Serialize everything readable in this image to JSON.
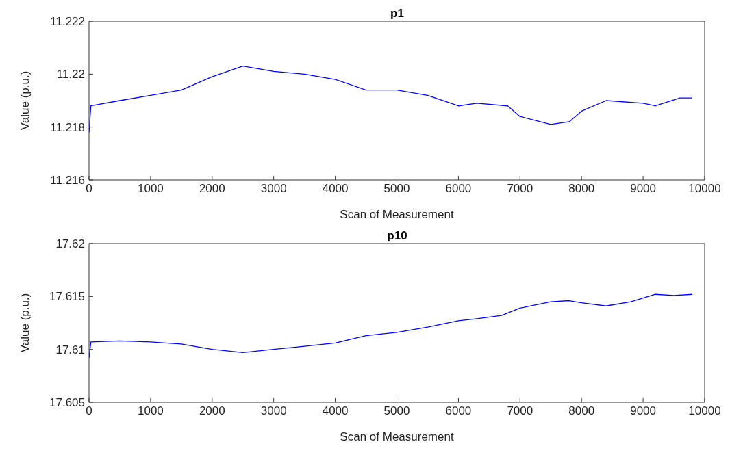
{
  "chart_data": [
    {
      "type": "line",
      "title": "p1",
      "xlabel": "Scan of Measurement",
      "ylabel": "Value (p.u.)",
      "xlim": [
        0,
        10000
      ],
      "xticks": [
        0,
        1000,
        2000,
        3000,
        4000,
        5000,
        6000,
        7000,
        8000,
        9000,
        10000
      ],
      "ylim": [
        11.216,
        11.222
      ],
      "yticks": [
        11.216,
        11.218,
        11.22,
        11.222
      ],
      "grid": false,
      "legend": false,
      "marker": "none",
      "line_style": "solid",
      "series": [
        {
          "color": "#0000ff",
          "x": [
            0,
            30,
            500,
            1000,
            1500,
            2000,
            2500,
            3000,
            3500,
            4000,
            4500,
            5000,
            5500,
            6000,
            6300,
            6800,
            7000,
            7500,
            7800,
            8000,
            8400,
            9000,
            9200,
            9600,
            9800
          ],
          "values": [
            11.2178,
            11.2188,
            11.219,
            11.2192,
            11.2194,
            11.2199,
            11.2203,
            11.2201,
            11.22,
            11.2198,
            11.2194,
            11.2194,
            11.2192,
            11.2188,
            11.2189,
            11.2188,
            11.2184,
            11.2181,
            11.2182,
            11.2186,
            11.219,
            11.2189,
            11.2188,
            11.2191,
            11.2191
          ]
        }
      ]
    },
    {
      "type": "line",
      "title": "p10",
      "xlabel": "Scan of Measurement",
      "ylabel": "Value (p.u.)",
      "xlim": [
        0,
        10000
      ],
      "xticks": [
        0,
        1000,
        2000,
        3000,
        4000,
        5000,
        6000,
        7000,
        8000,
        9000,
        10000
      ],
      "ylim": [
        17.605,
        17.62
      ],
      "yticks": [
        17.605,
        17.61,
        17.615,
        17.62
      ],
      "grid": false,
      "legend": false,
      "marker": "none",
      "line_style": "solid",
      "series": [
        {
          "color": "#0000ff",
          "x": [
            0,
            30,
            500,
            1000,
            1500,
            2000,
            2500,
            3000,
            3500,
            4000,
            4500,
            5000,
            5500,
            6000,
            6300,
            6700,
            7000,
            7500,
            7800,
            8000,
            8400,
            8800,
            9200,
            9500,
            9800
          ],
          "values": [
            17.6092,
            17.6107,
            17.6108,
            17.6107,
            17.6105,
            17.61,
            17.6097,
            17.61,
            17.6103,
            17.6106,
            17.6113,
            17.6116,
            17.6121,
            17.6127,
            17.6129,
            17.6132,
            17.6139,
            17.6145,
            17.6146,
            17.6144,
            17.6141,
            17.6145,
            17.6152,
            17.6151,
            17.6152
          ]
        }
      ]
    }
  ]
}
